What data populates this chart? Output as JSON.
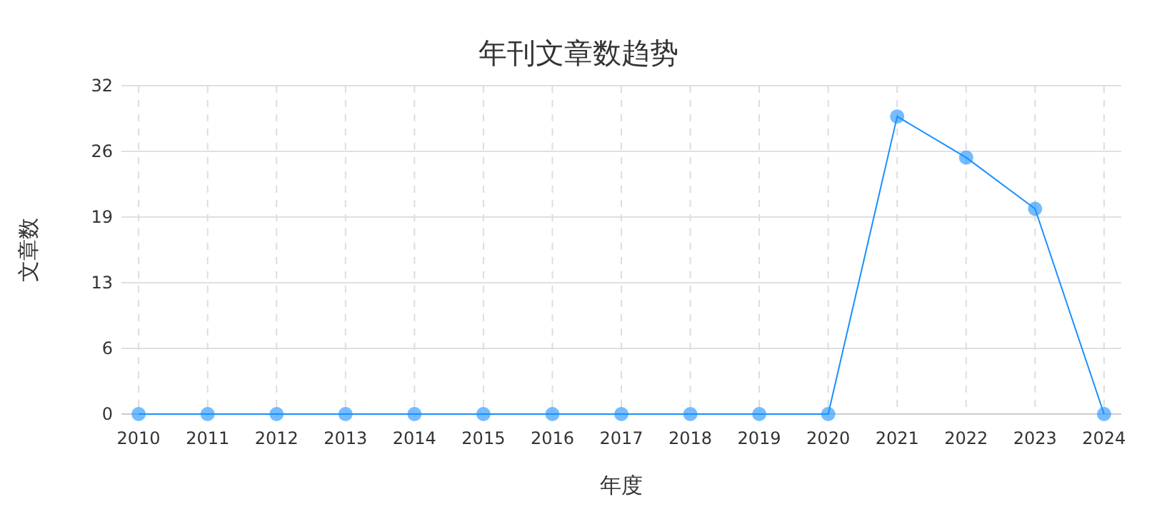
{
  "chart_data": {
    "type": "line",
    "title": "年刊文章数趋势",
    "xlabel": "年度",
    "ylabel": "文章数",
    "categories": [
      "2010",
      "2011",
      "2012",
      "2013",
      "2014",
      "2015",
      "2016",
      "2017",
      "2018",
      "2019",
      "2020",
      "2021",
      "2022",
      "2023",
      "2024"
    ],
    "series": [
      {
        "color": "#1890ff",
        "values": [
          0,
          0,
          0,
          0,
          0,
          0,
          0,
          0,
          0,
          0,
          0,
          29,
          25,
          20,
          0
        ]
      }
    ],
    "ylim": [
      0,
      32
    ],
    "yticks": [
      0,
      {
        "value": 6.4,
        "label": "6"
      },
      {
        "value": 12.8,
        "label": "13"
      },
      {
        "value": 19.2,
        "label": "19"
      },
      {
        "value": 25.6,
        "label": "26"
      },
      32
    ],
    "grid": true,
    "marker": "circle",
    "line_style": "solid"
  }
}
